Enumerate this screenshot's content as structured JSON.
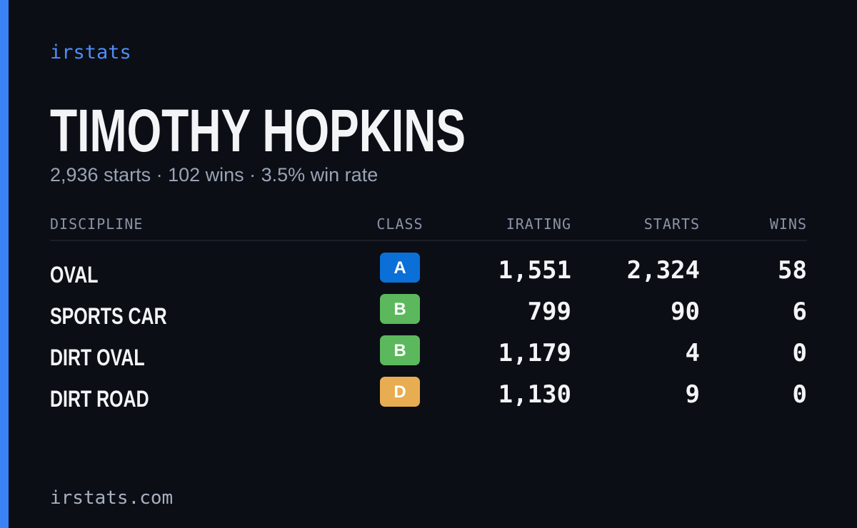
{
  "brand": "irstats",
  "name": "TIMOTHY HOPKINS",
  "summary": "2,936 starts · 102 wins · 3.5% win rate",
  "table": {
    "headers": [
      "DISCIPLINE",
      "CLASS",
      "IRATING",
      "STARTS",
      "WINS"
    ],
    "rows": [
      {
        "discipline": "OVAL",
        "class": "A",
        "class_color": "#0b6fd8",
        "irating": "1,551",
        "starts": "2,324",
        "wins": "58"
      },
      {
        "discipline": "SPORTS CAR",
        "class": "B",
        "class_color": "#5cb85c",
        "irating": "799",
        "starts": "90",
        "wins": "6"
      },
      {
        "discipline": "DIRT OVAL",
        "class": "B",
        "class_color": "#5cb85c",
        "irating": "1,179",
        "starts": "4",
        "wins": "0"
      },
      {
        "discipline": "DIRT ROAD",
        "class": "D",
        "class_color": "#e8ad50",
        "irating": "1,130",
        "starts": "9",
        "wins": "0"
      }
    ]
  },
  "footer": "irstats.com"
}
